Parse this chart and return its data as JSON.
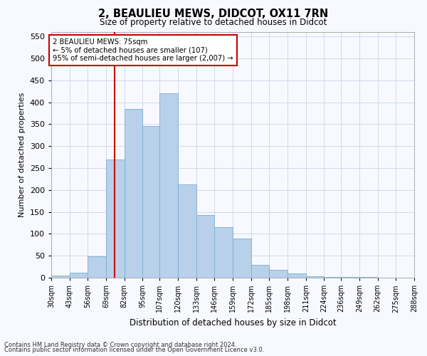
{
  "title": "2, BEAULIEU MEWS, DIDCOT, OX11 7RN",
  "subtitle": "Size of property relative to detached houses in Didcot",
  "xlabel": "Distribution of detached houses by size in Didcot",
  "ylabel": "Number of detached properties",
  "footer1": "Contains HM Land Registry data © Crown copyright and database right 2024.",
  "footer2": "Contains public sector information licensed under the Open Government Licence v3.0.",
  "categories": [
    "30sqm",
    "43sqm",
    "56sqm",
    "69sqm",
    "82sqm",
    "95sqm",
    "107sqm",
    "120sqm",
    "133sqm",
    "146sqm",
    "159sqm",
    "172sqm",
    "185sqm",
    "198sqm",
    "211sqm",
    "224sqm",
    "236sqm",
    "249sqm",
    "262sqm",
    "275sqm",
    "288sqm"
  ],
  "bar_heights": [
    5,
    12,
    48,
    270,
    385,
    345,
    420,
    212,
    143,
    115,
    90,
    30,
    18,
    10,
    4,
    2,
    1,
    1,
    0,
    0
  ],
  "bin_edges": [
    30,
    43,
    56,
    69,
    82,
    95,
    107,
    120,
    133,
    146,
    159,
    172,
    185,
    198,
    211,
    224,
    236,
    249,
    262,
    275,
    288
  ],
  "bar_color": "#b8d0ea",
  "bar_edgecolor": "#7aafd4",
  "vline_x": 75,
  "vline_color": "#cc0000",
  "annotation_line1": "2 BEAULIEU MEWS: 75sqm",
  "annotation_line2": "← 5% of detached houses are smaller (107)",
  "annotation_line3": "95% of semi-detached houses are larger (2,007) →",
  "annotation_box_color": "#ffffff",
  "annotation_box_edgecolor": "#cc0000",
  "ylim": [
    0,
    560
  ],
  "yticks": [
    0,
    50,
    100,
    150,
    200,
    250,
    300,
    350,
    400,
    450,
    500,
    550
  ],
  "background_color": "#f8f9ff",
  "grid_color": "#c8d4e8"
}
